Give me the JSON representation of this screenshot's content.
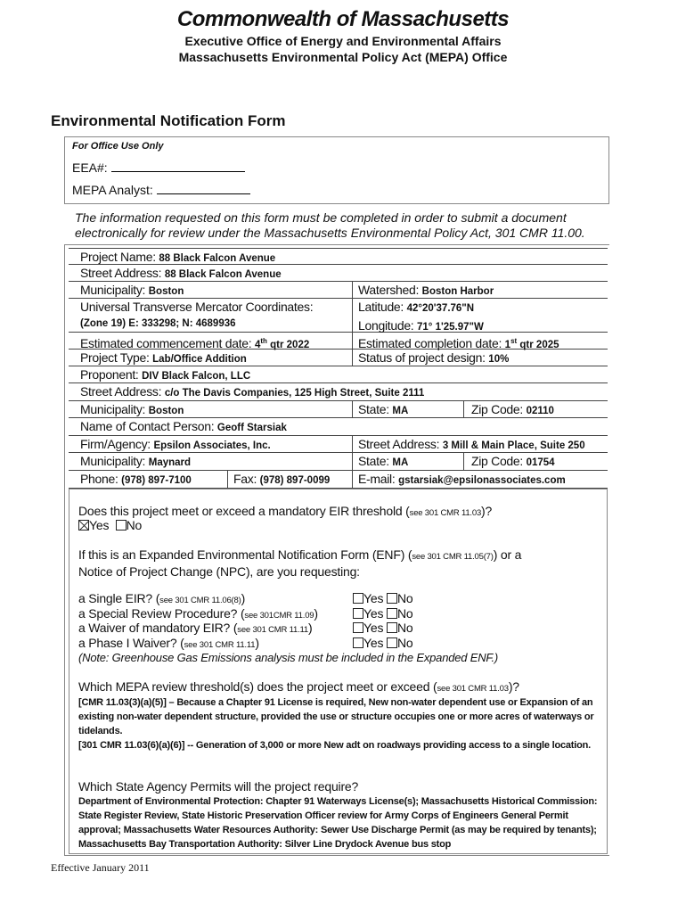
{
  "header": {
    "title": "Commonwealth of Massachusetts",
    "sub1": "Executive Office of Energy and Environmental Affairs",
    "sub2": "Massachusetts Environmental Policy Act (MEPA) Office"
  },
  "form_title": "Environmental Notification Form",
  "office": {
    "heading": "For Office Use Only",
    "eea": "EEA#:",
    "analyst": "MEPA Analyst:"
  },
  "intro": "The information requested on this form must be completed in order to submit a document electronically for review under the Massachusetts Environmental Policy Act, 301 CMR 11.00.",
  "project": {
    "name_l": "Project Name:",
    "name": "88 Black Falcon Avenue",
    "street_l": "Street Address:",
    "street": "88 Black Falcon Avenue",
    "muni_l": "Municipality:",
    "muni": "Boston",
    "watershed_l": "Watershed:",
    "watershed": "Boston Harbor",
    "utm_l": "Universal Transverse Mercator Coordinates:",
    "utm": "(Zone 19) E: 333298; N: 4689936",
    "lat_l": "Latitude:",
    "lat": "42°20'37.76\"N",
    "lon_l": "Longitude:",
    "lon": "71° 1'25.97\"W",
    "start_l": "Estimated commencement date:",
    "start_n": "4",
    "start_sup": "th",
    "start": "qtr 2022",
    "end_l": "Estimated completion date:",
    "end_n": "1",
    "end_sup": "st",
    "end": "qtr 2025",
    "type_l": "Project Type:",
    "type": "Lab/Office Addition",
    "status_l": "Status of project design:",
    "status": "10%"
  },
  "proponent": {
    "name_l": "Proponent:",
    "name": "DIV Black Falcon, LLC",
    "street_l": "Street Address:",
    "street": "c/o The Davis Companies, 125 High Street, Suite 2111",
    "muni_l": "Municipality:",
    "muni": "Boston",
    "state_l": "State:",
    "state": "MA",
    "zip_l": "Zip Code:",
    "zip": "02110"
  },
  "contact": {
    "name_l": "Name of Contact Person:",
    "name": "Geoff Starsiak",
    "firm_l": "Firm/Agency:",
    "firm": "Epsilon Associates, Inc.",
    "street_l": "Street Address:",
    "street": "3 Mill & Main Place, Suite 250",
    "muni_l": "Municipality:",
    "muni": "Maynard",
    "state_l": "State:",
    "state": "MA",
    "zip_l": "Zip Code:",
    "zip": "01754",
    "phone_l": "Phone:",
    "phone": "(978) 897-7100",
    "fax_l": "Fax:",
    "fax": "(978) 897-0099",
    "email_l": "E-mail:",
    "email": "gstarsiak@epsilonassociates.com"
  },
  "questions": {
    "eir_q": "Does this project meet or exceed a mandatory EIR threshold (",
    "eir_ref": "see 301 CMR 11.03",
    "eir_end": ")?",
    "yes": "Yes",
    "no": "No",
    "enf_q1": "If this is an Expanded Environmental Notification Form (ENF) (",
    "enf_ref": "see 301 CMR 11.05(7)",
    "enf_q2": ") or a",
    "enf_q3": "Notice of Project Change (NPC), are you requesting:",
    "items": [
      {
        "q": "a Single EIR? (",
        "ref": "see 301 CMR 11.06(8)"
      },
      {
        "q": "a Special Review Procedure? (",
        "ref": "see 301CMR 11.09"
      },
      {
        "q": "a Waiver of mandatory EIR? (",
        "ref": "see 301 CMR 11.11"
      },
      {
        "q": "a Phase I Waiver? (",
        "ref": "see 301 CMR 11.11"
      }
    ],
    "close": ")",
    "note": "(Note: Greenhouse Gas Emissions analysis must be included in the Expanded ENF.)",
    "thr_q": "Which MEPA review threshold(s) does the project meet or exceed (",
    "thr_ref": "see 301 CMR 11.03",
    "thr_end": ")?",
    "thr_a1": "[CMR 11.03(3)(a)(5)] – Because a Chapter 91 License is required, New non-water dependent use or Expansion of an existing non-water dependent structure, provided the use or structure occupies one or more acres of waterways or tidelands.",
    "thr_a2": "[301 CMR 11.03(6)(a)(6)] -- Generation of 3,000 or more New adt on roadways providing access to a single location.",
    "perm_q": "Which State Agency Permits will the project require?",
    "perm_a": "Department of Environmental Protection: Chapter 91 Waterways License(s); Massachusetts Historical Commission: State Register Review, State Historic Preservation Officer review for Army Corps of Engineers General Permit approval; Massachusetts Water Resources Authority: Sewer Use Discharge Permit (as may be required by tenants); Massachusetts Bay Transportation Authority: Silver Line Drydock Avenue bus stop"
  },
  "footer": "Effective January 2011"
}
